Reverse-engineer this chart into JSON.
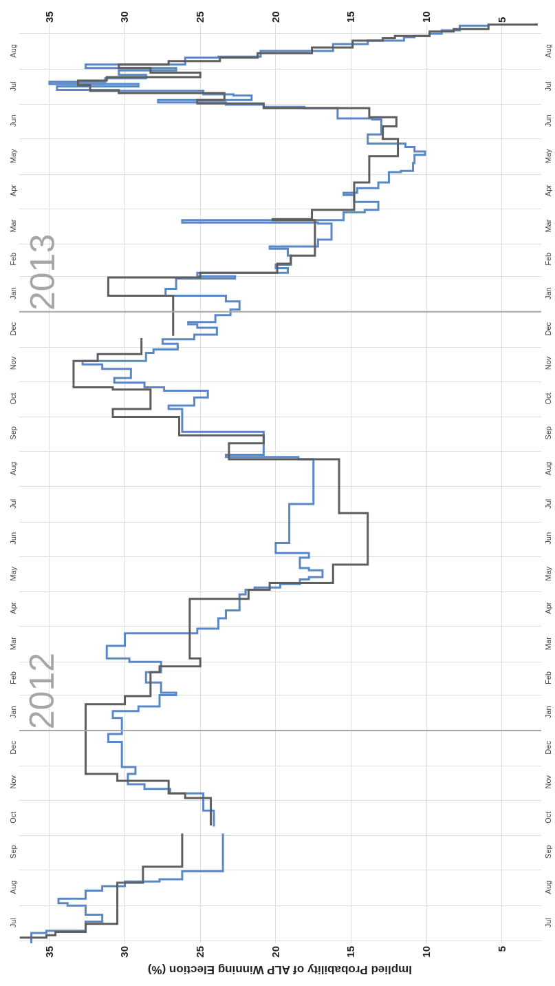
{
  "chart_data": {
    "type": "step",
    "orientation": "horizontal",
    "xlabel": "Implied Probability of ALP Winning Election (%)",
    "xlim": [
      37,
      2.4
    ],
    "xticks": [
      35,
      30,
      25,
      20,
      15,
      10,
      5
    ],
    "x2lim": [
      37,
      2.4
    ],
    "x2ticks": [
      35,
      30,
      25,
      20,
      15,
      10,
      5
    ],
    "ylim": [
      "2011-06-29",
      "2013-09-10"
    ],
    "yticks": [
      {
        "value": "2011-07-01",
        "label": null
      },
      {
        "value": "2011-07-16",
        "label": "Jul"
      },
      {
        "value": "2011-08-01",
        "label": null
      },
      {
        "value": "2011-08-16",
        "label": "Aug"
      },
      {
        "value": "2011-09-01",
        "label": null
      },
      {
        "value": "2011-09-16",
        "label": "Sep"
      },
      {
        "value": "2011-10-01",
        "label": null
      },
      {
        "value": "2011-10-16",
        "label": "Oct"
      },
      {
        "value": "2011-11-01",
        "label": null
      },
      {
        "value": "2011-11-16",
        "label": "Nov"
      },
      {
        "value": "2011-12-01",
        "label": null
      },
      {
        "value": "2011-12-16",
        "label": "Dec"
      },
      {
        "value": "2012-01-16",
        "label": "Jan"
      },
      {
        "value": "2012-02-01",
        "label": null
      },
      {
        "value": "2012-02-15",
        "label": "Feb"
      },
      {
        "value": "2012-03-01",
        "label": null
      },
      {
        "value": "2012-03-16",
        "label": "Mar"
      },
      {
        "value": "2012-04-01",
        "label": null
      },
      {
        "value": "2012-04-16",
        "label": "Apr"
      },
      {
        "value": "2012-05-01",
        "label": null
      },
      {
        "value": "2012-05-16",
        "label": "May"
      },
      {
        "value": "2012-06-01",
        "label": null
      },
      {
        "value": "2012-06-16",
        "label": "Jun"
      },
      {
        "value": "2012-07-01",
        "label": null
      },
      {
        "value": "2012-07-16",
        "label": "Jul"
      },
      {
        "value": "2012-08-01",
        "label": null
      },
      {
        "value": "2012-08-16",
        "label": "Aug"
      },
      {
        "value": "2012-09-01",
        "label": null
      },
      {
        "value": "2012-09-16",
        "label": "Sep"
      },
      {
        "value": "2012-10-01",
        "label": null
      },
      {
        "value": "2012-10-16",
        "label": "Oct"
      },
      {
        "value": "2012-11-01",
        "label": null
      },
      {
        "value": "2012-11-16",
        "label": "Nov"
      },
      {
        "value": "2012-12-01",
        "label": null
      },
      {
        "value": "2012-12-16",
        "label": "Dec"
      },
      {
        "value": "2013-01-16",
        "label": "Jan"
      },
      {
        "value": "2013-02-01",
        "label": null
      },
      {
        "value": "2013-02-15",
        "label": "Feb"
      },
      {
        "value": "2013-03-01",
        "label": null
      },
      {
        "value": "2013-03-16",
        "label": "Mar"
      },
      {
        "value": "2013-04-01",
        "label": null
      },
      {
        "value": "2013-04-16",
        "label": "Apr"
      },
      {
        "value": "2013-05-01",
        "label": null
      },
      {
        "value": "2013-05-16",
        "label": "May"
      },
      {
        "value": "2013-06-01",
        "label": null
      },
      {
        "value": "2013-06-16",
        "label": "Jun"
      },
      {
        "value": "2013-07-01",
        "label": null
      },
      {
        "value": "2013-07-16",
        "label": "Jul"
      },
      {
        "value": "2013-08-01",
        "label": null
      },
      {
        "value": "2013-08-16",
        "label": "Aug"
      },
      {
        "value": "2013-09-01",
        "label": null
      }
    ],
    "y2lim": [
      "2011-06-29",
      "2013-09-10"
    ],
    "y2ticks": [
      {
        "value": "2011-07-16",
        "label": "Jul"
      },
      {
        "value": "2011-08-16",
        "label": "Aug"
      },
      {
        "value": "2011-09-16",
        "label": "Sep"
      },
      {
        "value": "2011-10-16",
        "label": "Oct"
      },
      {
        "value": "2011-11-16",
        "label": "Nov"
      },
      {
        "value": "2011-12-16",
        "label": "Dec"
      },
      {
        "value": "2012-01-16",
        "label": "Jan"
      },
      {
        "value": "2012-02-15",
        "label": "Feb"
      },
      {
        "value": "2012-03-16",
        "label": "Mar"
      },
      {
        "value": "2012-04-16",
        "label": "Apr"
      },
      {
        "value": "2012-05-16",
        "label": "May"
      },
      {
        "value": "2012-06-16",
        "label": "Jun"
      },
      {
        "value": "2012-07-16",
        "label": "Jul"
      },
      {
        "value": "2012-08-16",
        "label": "Aug"
      },
      {
        "value": "2012-09-16",
        "label": "Sep"
      },
      {
        "value": "2012-10-16",
        "label": "Oct"
      },
      {
        "value": "2012-11-16",
        "label": "Nov"
      },
      {
        "value": "2012-12-16",
        "label": "Dec"
      },
      {
        "value": "2013-01-16",
        "label": "Jan"
      },
      {
        "value": "2013-02-15",
        "label": "Feb"
      },
      {
        "value": "2013-03-16",
        "label": "Mar"
      },
      {
        "value": "2013-04-16",
        "label": "Apr"
      },
      {
        "value": "2013-05-16",
        "label": "May"
      },
      {
        "value": "2013-06-16",
        "label": "Jun"
      },
      {
        "value": "2013-07-16",
        "label": "Jul"
      },
      {
        "value": "2013-08-16",
        "label": "Aug"
      }
    ],
    "grid": true,
    "ref_lines": [
      {
        "axis": "y",
        "value": "2012-01-01",
        "label": "2012",
        "color": "#a6a6a6"
      },
      {
        "axis": "y",
        "value": "2013-01-01",
        "label": "2013",
        "color": "#a6a6a6"
      }
    ],
    "series": [
      {
        "color": "#5a88c6",
        "x": [
          "2011-06-29",
          "2011-07-08",
          "2011-07-10",
          "2011-07-18",
          "2011-07-24",
          "2011-08-01",
          "2011-08-03",
          "2011-08-07",
          "2011-08-14",
          "2011-08-18",
          "2011-08-22",
          "2011-08-24",
          "2011-08-31",
          "2011-10-03",
          "2011-10-04",
          "2011-10-09",
          "2011-10-23",
          "2011-11-07",
          "2011-11-11",
          "2011-11-15",
          "2011-11-24",
          "2011-11-30",
          "2011-12-22",
          "2011-12-29",
          "2012-01-12",
          "2012-01-18",
          "2012-01-22",
          "2012-02-01",
          "2012-02-03",
          "2012-02-12",
          "2012-02-21",
          "2012-03-01",
          "2012-03-04",
          "2012-03-15",
          "2012-03-26",
          "2012-03-30",
          "2012-04-08",
          "2012-04-15",
          "2012-04-29",
          "2012-05-03",
          "2012-05-05",
          "2012-05-08",
          "2012-05-12",
          "2012-05-14",
          "2012-05-20",
          "2012-05-22",
          "2012-05-31",
          "2012-06-04",
          "2012-06-13",
          "2012-07-17",
          "2012-08-25",
          "2012-08-27",
          "2012-08-29",
          "2012-09-18",
          "2012-10-08",
          "2012-10-11",
          "2012-10-18",
          "2012-10-24",
          "2012-10-27",
          "2012-10-31",
          "2012-11-04",
          "2012-11-12",
          "2012-11-16",
          "2012-11-19",
          "2012-11-26",
          "2012-11-29",
          "2012-12-04",
          "2012-12-08",
          "2012-12-12",
          "2012-12-18",
          "2012-12-21",
          "2012-12-23",
          "2012-12-29",
          "2013-01-03",
          "2013-01-10",
          "2013-01-15",
          "2013-01-21",
          "2013-01-30",
          "2013-02-01",
          "2013-02-04",
          "2013-02-08",
          "2013-02-11",
          "2013-02-19",
          "2013-02-25",
          "2013-02-27",
          "2013-03-05",
          "2013-03-19",
          "2013-03-20",
          "2013-03-22",
          "2013-03-29",
          "2013-03-31",
          "2013-04-07",
          "2013-04-13",
          "2013-04-15",
          "2013-04-19",
          "2013-04-24",
          "2013-05-03",
          "2013-05-04",
          "2013-05-11",
          "2013-05-18",
          "2013-05-21",
          "2013-05-25",
          "2013-05-28",
          "2013-06-05",
          "2013-06-18",
          "2013-06-19",
          "2013-06-28",
          "2013-06-29",
          "2013-07-01",
          "2013-07-03",
          "2013-07-05",
          "2013-07-09",
          "2013-07-10",
          "2013-07-13",
          "2013-07-14",
          "2013-07-17",
          "2013-07-19",
          "2013-07-21",
          "2013-07-24",
          "2013-07-27",
          "2013-07-31",
          "2013-08-02",
          "2013-08-05",
          "2013-08-11",
          "2013-08-12",
          "2013-08-17",
          "2013-08-23",
          "2013-08-26",
          "2013-08-29",
          "2013-08-30",
          "2013-09-01",
          "2013-09-04",
          "2013-09-08",
          "2013-09-09"
        ],
        "values": [
          36.2,
          35.2,
          32.6,
          31.5,
          32.6,
          33.8,
          34.4,
          32.6,
          31.5,
          30.0,
          27.7,
          26.2,
          23.5,
          23.5,
          null,
          24.1,
          24.8,
          27.0,
          28.7,
          29.8,
          29.3,
          30.2,
          31.1,
          30.2,
          30.8,
          29.1,
          27.7,
          26.6,
          27.6,
          28.6,
          27.6,
          29.7,
          31.2,
          30.0,
          25.2,
          23.8,
          23.3,
          22.4,
          22.0,
          21.4,
          19.7,
          18.4,
          17.8,
          16.9,
          17.8,
          18.4,
          17.8,
          20.0,
          19.1,
          17.5,
          18.5,
          23.3,
          20.8,
          26.2,
          27.1,
          25.4,
          24.5,
          27.4,
          28.7,
          30.7,
          29.6,
          31.5,
          32.8,
          28.6,
          28.1,
          26.5,
          27.5,
          25.4,
          23.9,
          25.2,
          25.8,
          24.0,
          23.0,
          22.4,
          23.3,
          27.3,
          26.6,
          22.7,
          25.2,
          19.2,
          20.0,
          19.0,
          19.2,
          20.4,
          17.2,
          16.3,
          17.2,
          26.2,
          15.5,
          14.1,
          13.2,
          14.8,
          15.5,
          14.6,
          13.2,
          12.5,
          11.7,
          10.9,
          10.8,
          10.1,
          10.8,
          11.4,
          13.9,
          13.0,
          13.6,
          15.9,
          18.1,
          20.8,
          23.3,
          27.8,
          21.6,
          22.8,
          24.8,
          30.4,
          34.5,
          29.1,
          35.0,
          31.3,
          28.6,
          30.4,
          26.6,
          32.6,
          26.0,
          23.8,
          21.0,
          16.2,
          13.9,
          11.5,
          10.8,
          9.8,
          9.0,
          7.8,
          5.9,
          5.9
        ]
      },
      {
        "color": "#5e5e5e",
        "x": [
          "2011-07-03",
          "2011-07-04",
          "2011-07-06",
          "2011-07-09",
          "2011-07-16",
          "2011-08-21",
          "2011-09-04",
          "2011-10-03",
          "2011-10-04",
          "2011-10-10",
          "2011-11-03",
          "2011-11-07",
          "2011-11-18",
          "2011-11-24",
          "2012-01-24",
          "2012-01-31",
          "2012-02-21",
          "2012-02-26",
          "2012-03-04",
          "2012-04-25",
          "2012-05-03",
          "2012-05-09",
          "2012-05-25",
          "2012-07-09",
          "2012-08-25",
          "2012-09-08",
          "2012-09-15",
          "2012-10-01",
          "2012-10-08",
          "2012-10-25",
          "2012-10-27",
          "2012-11-19",
          "2012-11-25",
          "2012-12-09",
          "2012-12-10",
          "2012-12-11",
          "2013-01-15",
          "2013-01-31",
          "2013-02-04",
          "2013-02-12",
          "2013-02-19",
          "2013-03-22",
          "2013-03-23",
          "2013-03-31",
          "2013-04-24",
          "2013-05-17",
          "2013-06-01",
          "2013-06-12",
          "2013-06-20",
          "2013-06-28",
          "2013-07-02",
          "2013-07-05",
          "2013-07-11",
          "2013-07-13",
          "2013-07-18",
          "2013-07-22",
          "2013-07-25",
          "2013-07-29",
          "2013-08-02",
          "2013-08-05",
          "2013-08-08",
          "2013-08-11",
          "2013-08-15",
          "2013-08-20",
          "2013-08-26",
          "2013-08-28",
          "2013-08-30",
          "2013-09-03",
          "2013-09-05",
          "2013-09-09",
          "2013-09-10"
        ],
        "values": [
          36.9,
          35.2,
          34.6,
          32.6,
          30.5,
          28.8,
          26.2,
          26.2,
          null,
          24.3,
          26.0,
          27.1,
          30.5,
          32.6,
          30.0,
          28.3,
          27.7,
          25.0,
          25.7,
          21.8,
          20.4,
          16.2,
          13.9,
          15.8,
          23.1,
          20.8,
          26.4,
          30.8,
          28.3,
          30.8,
          33.4,
          31.8,
          28.9,
          28.9,
          null,
          26.8,
          31.1,
          25.0,
          19.9,
          19.0,
          17.4,
          20.2,
          17.6,
          14.8,
          13.8,
          11.9,
          12.9,
          12.0,
          13.8,
          20.8,
          25.2,
          23.4,
          30.4,
          32.3,
          33.1,
          31.2,
          25.0,
          28.3,
          30.4,
          27.1,
          23.7,
          21.2,
          17.6,
          14.9,
          12.9,
          12.1,
          9.8,
          8.2,
          5.9,
          2.7,
          2.7
        ]
      }
    ]
  }
}
